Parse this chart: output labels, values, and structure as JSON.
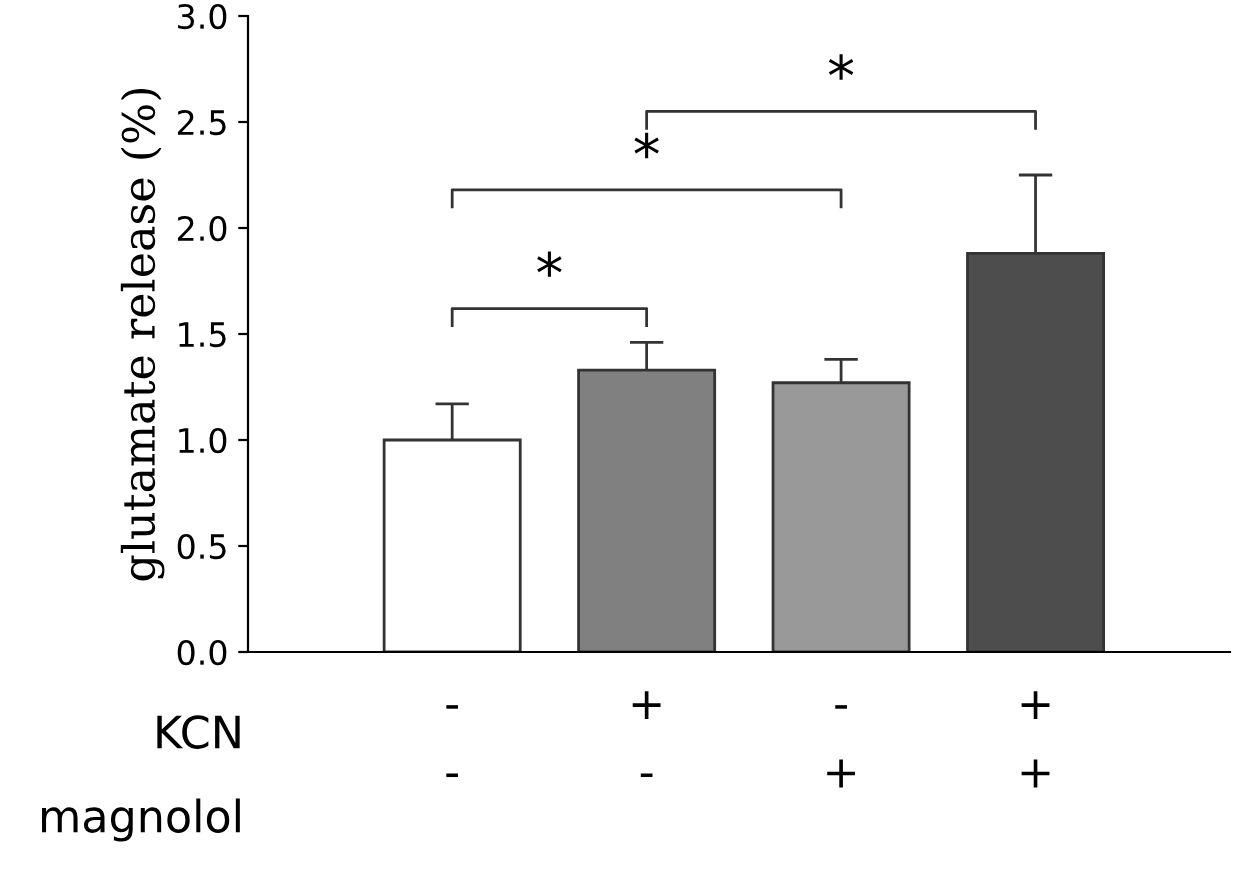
{
  "chart_data": {
    "type": "bar",
    "ylabel": "glutamate release (%)",
    "categories": [
      "-\n-",
      "+\n-",
      "-\n+",
      "+\n+"
    ],
    "values": [
      1.0,
      1.33,
      1.27,
      1.88
    ],
    "errors": [
      0.17,
      0.13,
      0.11,
      0.37
    ],
    "colors": [
      "#ffffff",
      "#808080",
      "#999999",
      "#4d4d4d"
    ],
    "ylim": [
      0,
      3
    ],
    "yticks": [
      {
        "value": 0,
        "label": "0.0"
      },
      {
        "value": 0.5,
        "label": "0.5"
      },
      {
        "value": 1,
        "label": "1.0"
      },
      {
        "value": 1.5,
        "label": "1.5"
      },
      {
        "value": 2,
        "label": "2.0"
      },
      {
        "value": 2.5,
        "label": "2.5"
      },
      {
        "value": 3,
        "label": "3.0"
      }
    ],
    "grid": false,
    "annotations": [
      "*",
      "*",
      "*",
      "KCN",
      "magnolol"
    ]
  }
}
